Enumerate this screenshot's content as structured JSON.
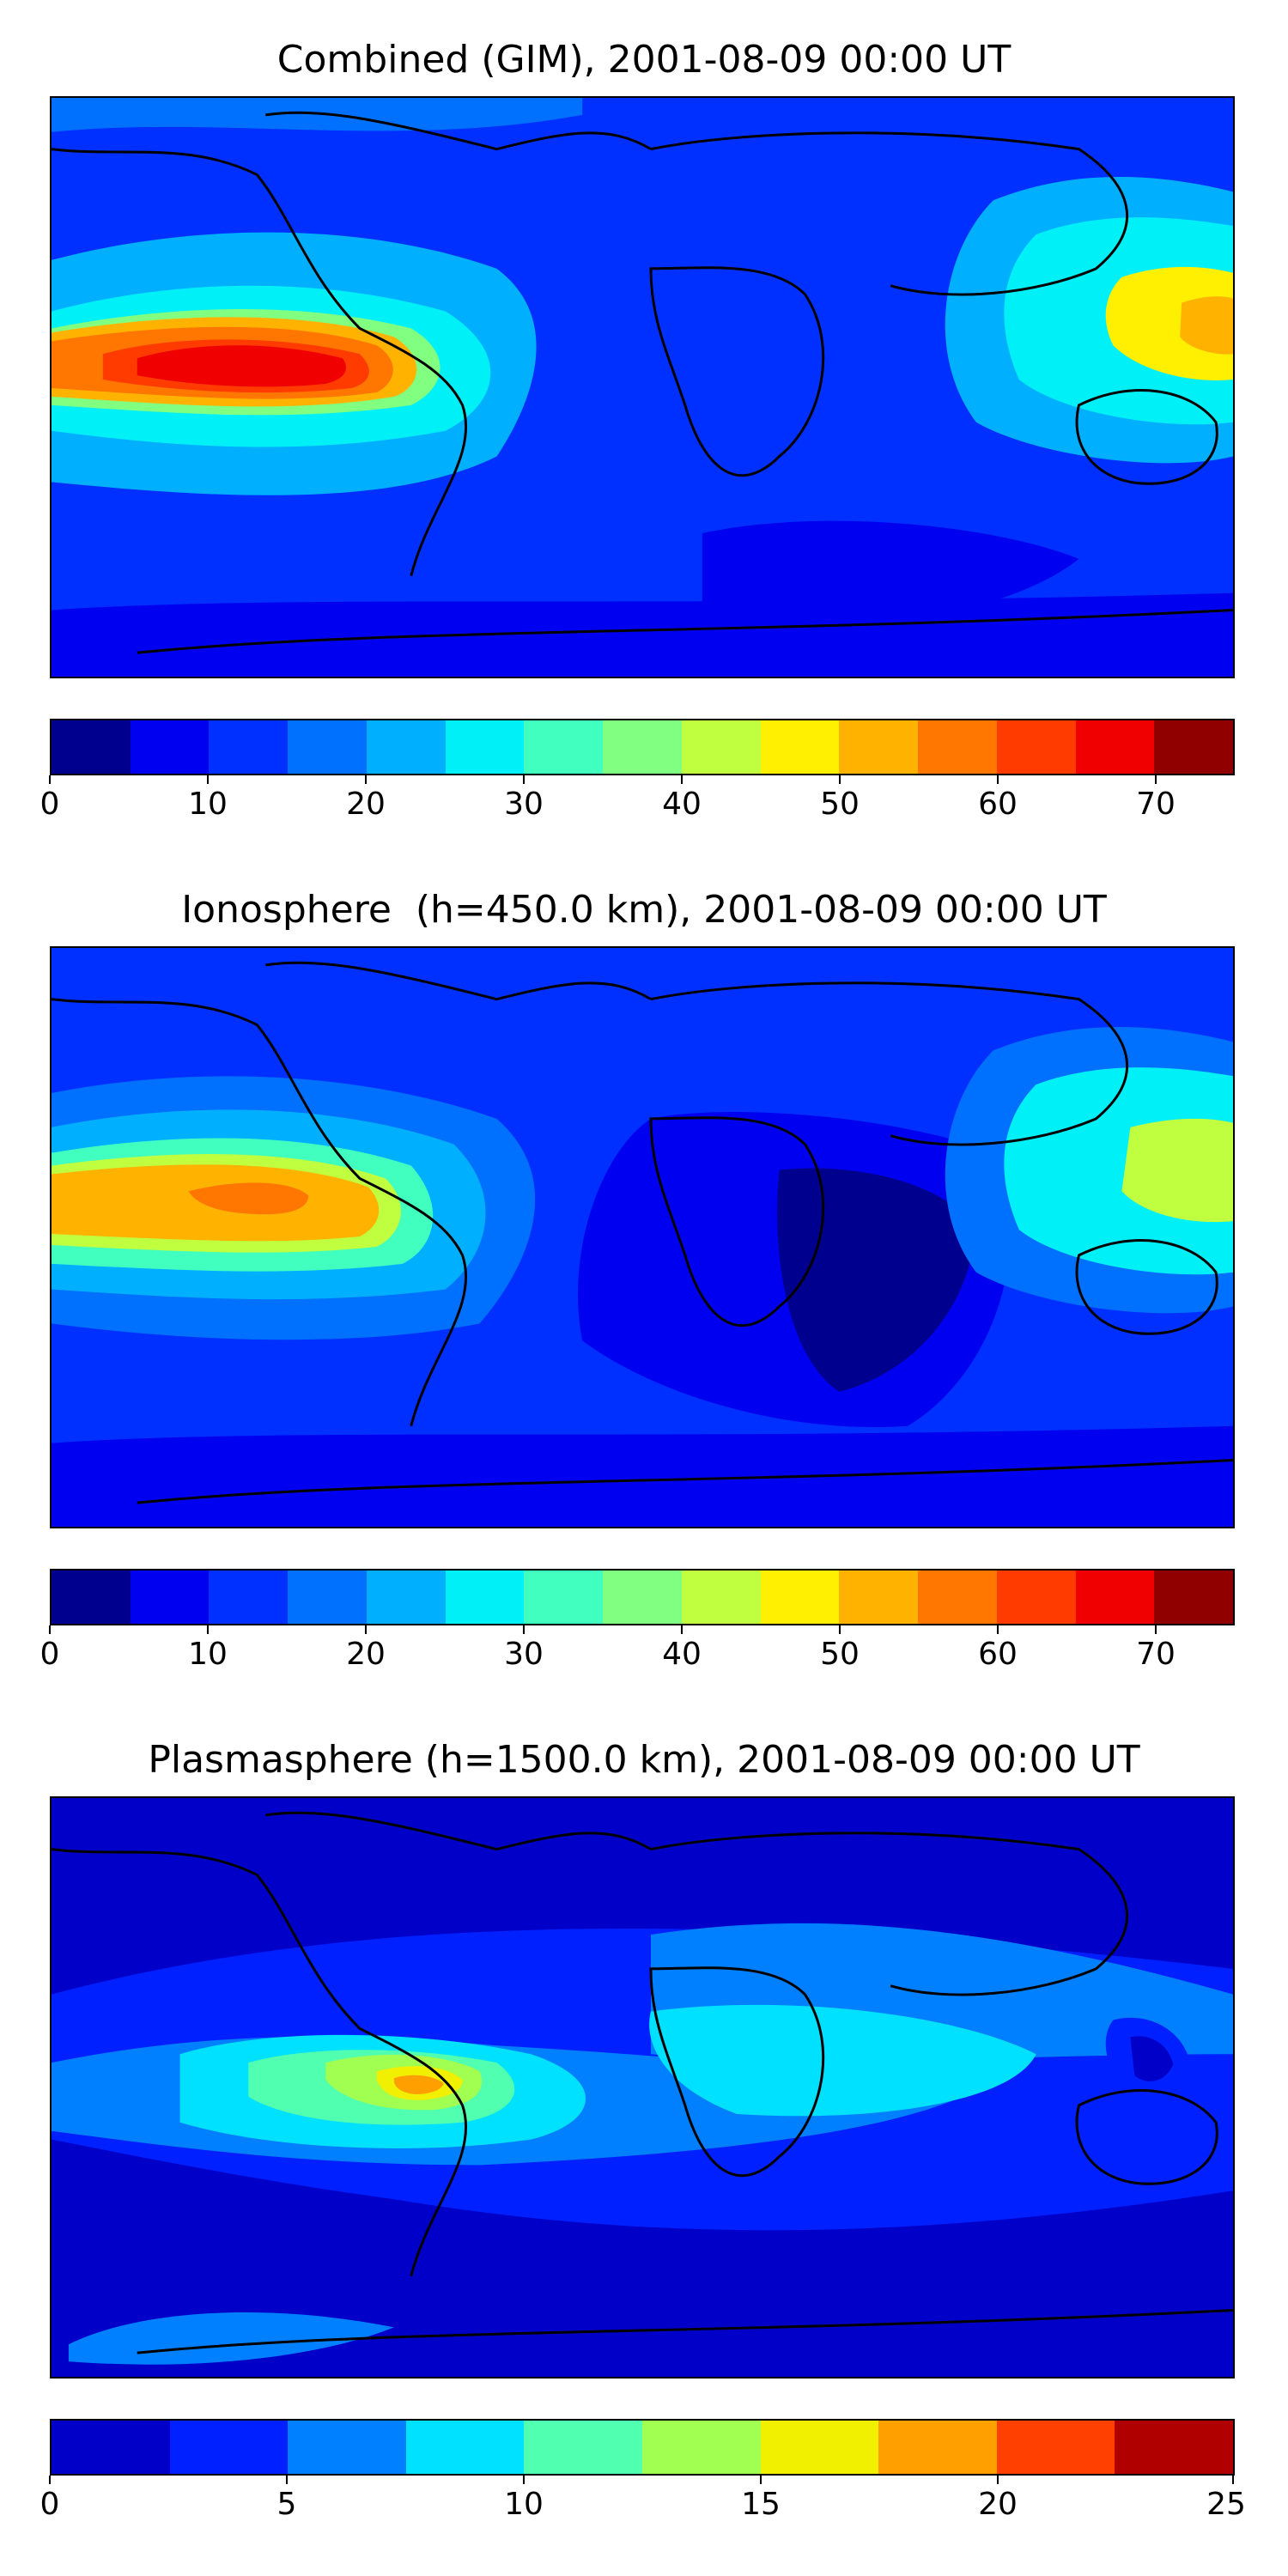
{
  "panels": [
    {
      "title": "Combined (GIM), 2001-08-09 00:00 UT",
      "colorbar": {
        "levels": [
          0,
          5,
          10,
          15,
          20,
          25,
          30,
          35,
          40,
          45,
          50,
          55,
          60,
          65,
          70,
          75
        ],
        "colors": [
          "#00008f",
          "#0000f0",
          "#0030ff",
          "#0070ff",
          "#00b0ff",
          "#00f0f8",
          "#40ffbf",
          "#80ff80",
          "#bfff40",
          "#ffef00",
          "#ffb300",
          "#ff7700",
          "#ff3b00",
          "#f00000",
          "#900000"
        ],
        "tick_labels": [
          "0",
          "10",
          "20",
          "30",
          "40",
          "50",
          "60",
          "70"
        ],
        "tick_values": [
          0,
          10,
          20,
          30,
          40,
          50,
          60,
          70
        ],
        "range": [
          0,
          75
        ]
      },
      "map_background": "#0030ff"
    },
    {
      "title": "Ionosphere  (h=450.0 km), 2001-08-09 00:00 UT",
      "colorbar": {
        "levels": [
          0,
          5,
          10,
          15,
          20,
          25,
          30,
          35,
          40,
          45,
          50,
          55,
          60,
          65,
          70,
          75
        ],
        "colors": [
          "#00008f",
          "#0000f0",
          "#0030ff",
          "#0070ff",
          "#00b0ff",
          "#00f0f8",
          "#40ffbf",
          "#80ff80",
          "#bfff40",
          "#ffef00",
          "#ffb300",
          "#ff7700",
          "#ff3b00",
          "#f00000",
          "#900000"
        ],
        "tick_labels": [
          "0",
          "10",
          "20",
          "30",
          "40",
          "50",
          "60",
          "70"
        ],
        "tick_values": [
          0,
          10,
          20,
          30,
          40,
          50,
          60,
          70
        ],
        "range": [
          0,
          75
        ]
      },
      "map_background": "#0030ff"
    },
    {
      "title": "Plasmasphere (h=1500.0 km), 2001-08-09 00:00 UT",
      "colorbar": {
        "levels": [
          0,
          2.5,
          5,
          7.5,
          10,
          12.5,
          15,
          17.5,
          20,
          22.5,
          25
        ],
        "colors": [
          "#0000c8",
          "#0020ff",
          "#0080ff",
          "#00e0ff",
          "#50ffb0",
          "#a0ff50",
          "#f0f000",
          "#ffa000",
          "#ff4000",
          "#b00000"
        ],
        "tick_labels": [
          "0",
          "5",
          "10",
          "15",
          "20",
          "25"
        ],
        "tick_values": [
          0,
          5,
          10,
          15,
          20,
          25
        ],
        "range": [
          0,
          25
        ]
      },
      "map_background": "#0000c8"
    }
  ]
}
